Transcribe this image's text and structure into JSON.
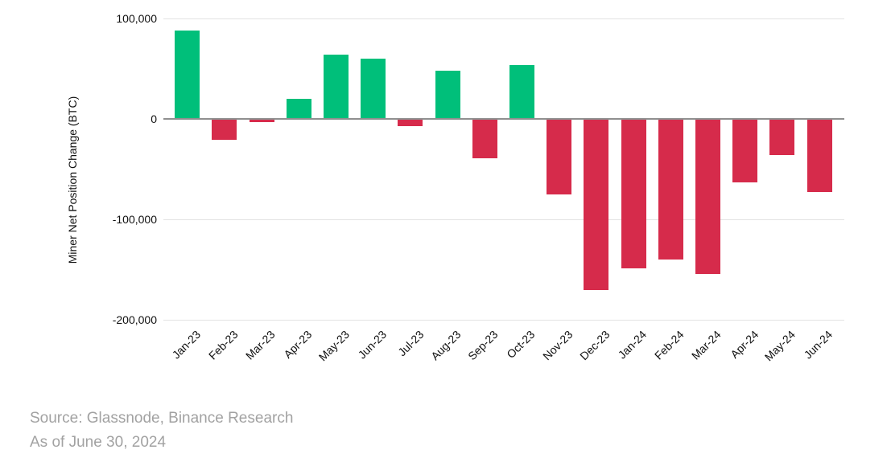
{
  "chart_data": {
    "type": "bar",
    "title": "",
    "xlabel": "",
    "ylabel": "Miner Net Position Change (BTC)",
    "categories": [
      "Jan-23",
      "Feb-23",
      "Mar-23",
      "Apr-23",
      "May-23",
      "Jun-23",
      "Jul-23",
      "Aug-23",
      "Sep-23",
      "Oct-23",
      "Nov-23",
      "Dec-23",
      "Jan-24",
      "Feb-24",
      "Mar-24",
      "Apr-24",
      "May-24",
      "Jun-24"
    ],
    "values": [
      88000,
      -21000,
      -3000,
      20000,
      64000,
      60000,
      -7000,
      48000,
      -39000,
      54000,
      -75000,
      -170000,
      -149000,
      -140000,
      -154000,
      -63000,
      -36000,
      -73000
    ],
    "ylim": [
      -200000,
      100000
    ],
    "yticks": [
      {
        "value": 100000,
        "label": "100,000"
      },
      {
        "value": 0,
        "label": "0"
      },
      {
        "value": -100000,
        "label": "-100,000"
      },
      {
        "value": -200000,
        "label": "-200,000"
      }
    ],
    "grid": true,
    "legend": "none",
    "positive_color": "#00bf7a",
    "negative_color": "#d62b4b"
  },
  "footer": {
    "source": "Source: Glassnode, Binance Research",
    "as_of": "As of June 30, 2024"
  }
}
